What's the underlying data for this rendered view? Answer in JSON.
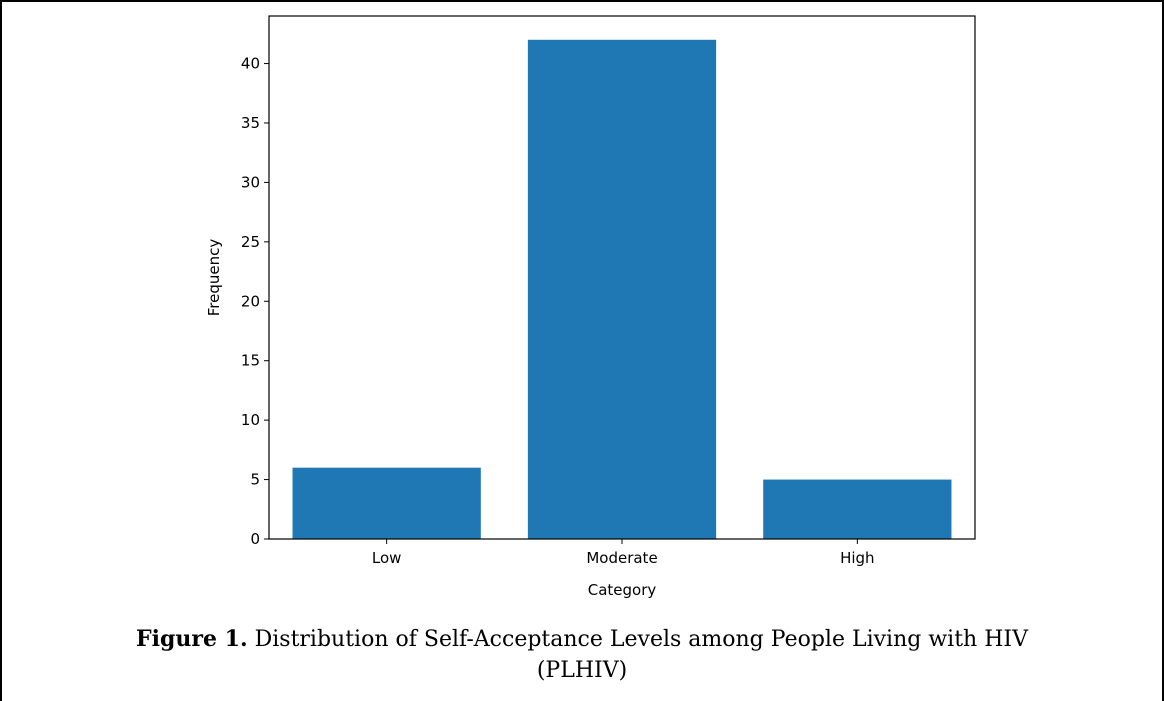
{
  "chart_data": {
    "type": "bar",
    "categories": [
      "Low",
      "Moderate",
      "High"
    ],
    "values": [
      6,
      42,
      5
    ],
    "xlabel": "Category",
    "ylabel": "Frequency",
    "ylim": [
      0,
      44
    ],
    "yticks": [
      0,
      5,
      10,
      15,
      20,
      25,
      30,
      35,
      40
    ],
    "grid": false,
    "bar_color": "#1f77b4"
  },
  "caption": {
    "label": "Figure 1.",
    "text": " Distribution of Self-Acceptance Levels among People Living with HIV",
    "text_line2": "(PLHIV)"
  }
}
